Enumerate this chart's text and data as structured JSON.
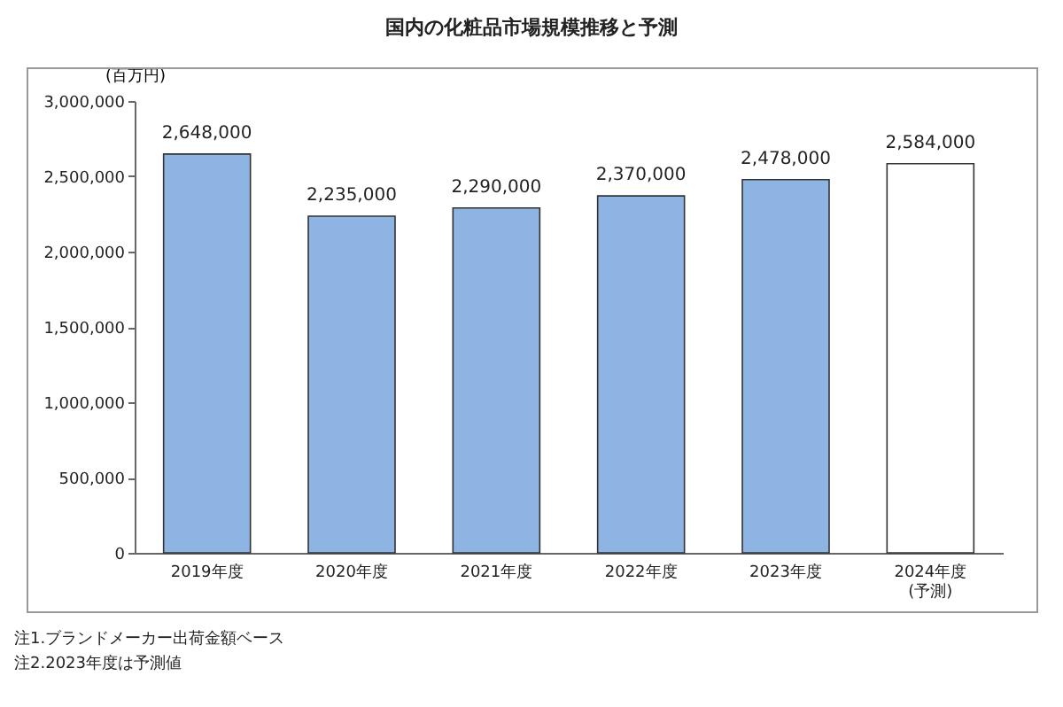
{
  "chart_data": {
    "type": "bar",
    "title": "国内の化粧品市場規模推移と予測",
    "ylabel": "(百万円)",
    "categories": [
      "2019年度",
      "2020年度",
      "2021年度",
      "2022年度",
      "2023年度",
      "2024年度\n(予測)"
    ],
    "values": [
      2648000,
      2235000,
      2290000,
      2370000,
      2478000,
      2584000
    ],
    "colors": [
      "#8db4e2",
      "#8db4e2",
      "#8db4e2",
      "#8db4e2",
      "#8db4e2",
      "#ffffff"
    ],
    "ylim": [
      0,
      3000000
    ],
    "yticks": [
      0,
      {
        "value": 500000,
        "label": "500,000"
      },
      {
        "value": 1000000,
        "label": "1,000,000"
      },
      {
        "value": 1500000,
        "label": "1,500,000"
      },
      {
        "value": 2000000,
        "label": "2,000,000"
      },
      {
        "value": 2500000,
        "label": "2,500,000"
      },
      {
        "value": 3000000,
        "label": "3,000,000"
      }
    ],
    "value_labels": [
      "2,648,000",
      "2,235,000",
      "2,290,000",
      "2,370,000",
      "2,478,000",
      "2,584,000"
    ],
    "annotations": [
      "注1.ブランドメーカー出荷金額ベース",
      "注2.2023年度は予測値"
    ]
  }
}
